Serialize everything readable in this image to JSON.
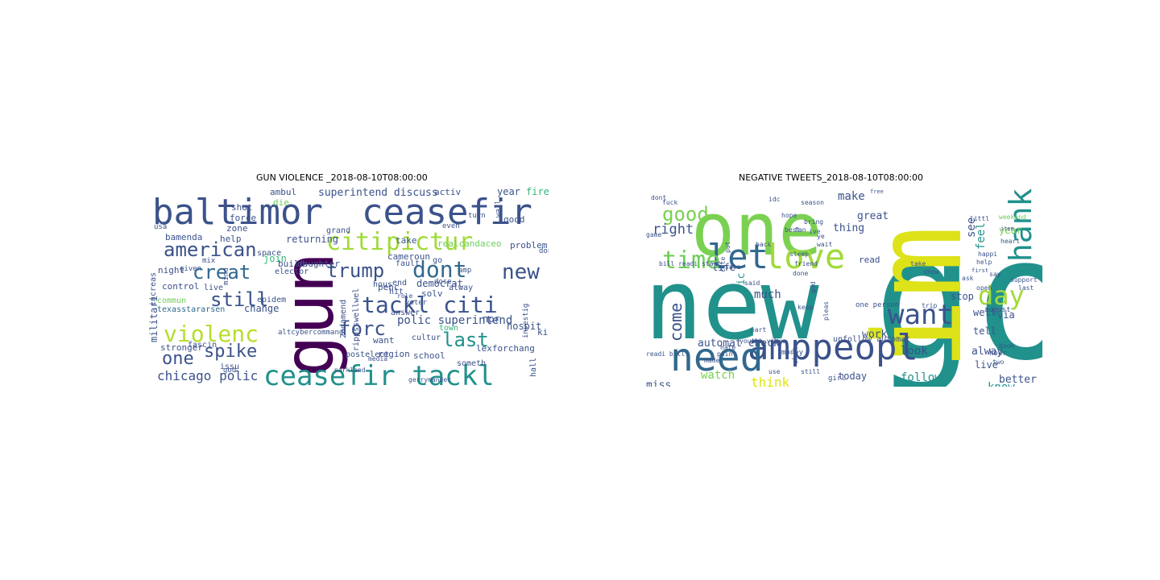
{
  "panels": [
    {
      "title": "GUN VIOLENCE _2018-08-10T08:00:00",
      "words": [
        {
          "t": "gun",
          "c": "#440154"
        },
        {
          "t": "baltimor",
          "c": "#3b528b"
        },
        {
          "t": "ceasefir",
          "c": "#3b528b"
        },
        {
          "t": "citi",
          "c": "#a0da39"
        },
        {
          "t": "pictur",
          "c": "#a0da39"
        },
        {
          "t": "american",
          "c": "#3b528b"
        },
        {
          "t": "creat",
          "c": "#31688e"
        },
        {
          "t": "trump",
          "c": "#3b528b"
        },
        {
          "t": "dont",
          "c": "#31688e"
        },
        {
          "t": "new",
          "c": "#3b528b"
        },
        {
          "t": "still",
          "c": "#3b528b"
        },
        {
          "t": "tackl citi",
          "c": "#3b528b"
        },
        {
          "t": "forc",
          "c": "#3b528b"
        },
        {
          "t": "violenc",
          "c": "#b5de2b"
        },
        {
          "t": "last",
          "c": "#21918c"
        },
        {
          "t": "one",
          "c": "#3b528b"
        },
        {
          "t": "spike",
          "c": "#3b528b"
        },
        {
          "t": "ceasefir tackl",
          "c": "#21918c"
        },
        {
          "t": "chicago polic",
          "c": "#3b528b"
        },
        {
          "t": "polic superintend",
          "c": "#3b528b"
        },
        {
          "t": "superintend discuss",
          "c": "#3b528b"
        },
        {
          "t": "shot",
          "c": "#3b528b"
        },
        {
          "t": "die",
          "c": "#6ece58"
        },
        {
          "t": "ambul",
          "c": "#3b528b"
        },
        {
          "t": "activ",
          "c": "#3b528b"
        },
        {
          "t": "year",
          "c": "#3b528b"
        },
        {
          "t": "fire",
          "c": "#35b779"
        },
        {
          "t": "bamenda",
          "c": "#3b528b"
        },
        {
          "t": "help",
          "c": "#3b528b"
        },
        {
          "t": "zone",
          "c": "#3b528b"
        },
        {
          "t": "force",
          "c": "#3b528b"
        },
        {
          "t": "returning",
          "c": "#3b528b"
        },
        {
          "t": "grand",
          "c": "#3b528b"
        },
        {
          "t": "good",
          "c": "#3b528b"
        },
        {
          "t": "night",
          "c": "#3b528b"
        },
        {
          "t": "control",
          "c": "#3b528b"
        },
        {
          "t": "live",
          "c": "#3b528b"
        },
        {
          "t": "commun",
          "c": "#6ece58"
        },
        {
          "t": "texasstararsen",
          "c": "#31688e"
        },
        {
          "t": "change",
          "c": "#3b528b"
        },
        {
          "t": "epidem",
          "c": "#3b528b"
        },
        {
          "t": "join",
          "c": "#35b779"
        },
        {
          "t": "build",
          "c": "#3b528b"
        },
        {
          "t": "daughter",
          "c": "#3b528b"
        },
        {
          "t": "space",
          "c": "#3b528b"
        },
        {
          "t": "cameroun",
          "c": "#3b528b"
        },
        {
          "t": "realcandaceo",
          "c": "#6ece58"
        },
        {
          "t": "problem",
          "c": "#3b528b"
        },
        {
          "t": "democrat",
          "c": "#3b528b"
        },
        {
          "t": "solv",
          "c": "#3b528b"
        },
        {
          "t": "penc",
          "c": "#3b528b"
        },
        {
          "t": "hit",
          "c": "#3b528b"
        },
        {
          "t": "hous",
          "c": "#3b528b"
        },
        {
          "t": "end",
          "c": "#3b528b"
        },
        {
          "t": "npr",
          "c": "#3b528b"
        },
        {
          "t": "hospit",
          "c": "#3b528b"
        },
        {
          "t": "lexforchang",
          "c": "#3b528b"
        },
        {
          "t": "want",
          "c": "#3b528b"
        },
        {
          "t": "region",
          "c": "#3b528b"
        },
        {
          "t": "school",
          "c": "#3b528b"
        },
        {
          "t": "postelect",
          "c": "#3b528b"
        },
        {
          "t": "issu",
          "c": "#3b528b"
        },
        {
          "t": "stronger",
          "c": "#3b528b"
        },
        {
          "t": "fascin",
          "c": "#3b528b"
        },
        {
          "t": "militari",
          "c": "#3b528b"
        },
        {
          "t": "rippsswellwel",
          "c": "#3b528b"
        },
        {
          "t": "2ndamend",
          "c": "#3b528b"
        },
        {
          "t": "town",
          "c": "#35b779"
        },
        {
          "t": "kid",
          "c": "#3b528b"
        },
        {
          "t": "cultur",
          "c": "#3b528b"
        },
        {
          "t": "someth",
          "c": "#3b528b"
        },
        {
          "t": "god",
          "c": "#3b528b"
        },
        {
          "t": "increas",
          "c": "#3b528b"
        },
        {
          "t": "given",
          "c": "#3b528b"
        },
        {
          "t": "mix",
          "c": "#3b528b"
        },
        {
          "t": "elector",
          "c": "#3b528b"
        },
        {
          "t": "take",
          "c": "#3b528b"
        },
        {
          "t": "fault",
          "c": "#3b528b"
        },
        {
          "t": "answer",
          "c": "#3b528b"
        },
        {
          "t": "alway",
          "c": "#3b528b"
        },
        {
          "t": "amp",
          "c": "#3b528b"
        },
        {
          "t": "hall",
          "c": "#3b528b"
        },
        {
          "t": "even",
          "c": "#3b528b"
        },
        {
          "t": "turn",
          "c": "#3b528b"
        },
        {
          "t": "wall",
          "c": "#3b528b"
        },
        {
          "t": "don",
          "c": "#3b528b"
        },
        {
          "t": "go",
          "c": "#3b528b"
        },
        {
          "t": "mind",
          "c": "#3b528b"
        },
        {
          "t": "investig",
          "c": "#3b528b"
        },
        {
          "t": "altcybercommand",
          "c": "#3b528b"
        },
        {
          "t": "voter",
          "c": "#3b528b"
        },
        {
          "t": "usa",
          "c": "#3b528b"
        },
        {
          "t": "role",
          "c": "#3b528b"
        },
        {
          "t": "dose",
          "c": "#3b528b"
        },
        {
          "t": "media",
          "c": "#3b528b"
        },
        {
          "t": "parkland",
          "c": "#3b528b"
        },
        {
          "t": "gerrymander",
          "c": "#3b528b"
        }
      ]
    },
    {
      "title": "NEGATIVE TWEETS_2018-08-10T08:00:00",
      "words": [
        {
          "t": "go",
          "c": "#21918c"
        },
        {
          "t": "new",
          "c": "#21918c"
        },
        {
          "t": "one",
          "c": "#7ad151"
        },
        {
          "t": "im",
          "c": "#dde318"
        },
        {
          "t": "amppeopl",
          "c": "#3b528b"
        },
        {
          "t": "need",
          "c": "#31688e"
        },
        {
          "t": "love",
          "c": "#a0da39"
        },
        {
          "t": "let",
          "c": "#31688e"
        },
        {
          "t": "thank",
          "c": "#21918c"
        },
        {
          "t": "time",
          "c": "#6ece58"
        },
        {
          "t": "day",
          "c": "#a0da39"
        },
        {
          "t": "want",
          "c": "#3b528b"
        },
        {
          "t": "good",
          "c": "#7ad151"
        },
        {
          "t": "right",
          "c": "#3b528b"
        },
        {
          "t": "come",
          "c": "#3b528b"
        },
        {
          "t": "make",
          "c": "#3b528b"
        },
        {
          "t": "great",
          "c": "#3b528b"
        },
        {
          "t": "thing",
          "c": "#3b528b"
        },
        {
          "t": "read",
          "c": "#3b528b"
        },
        {
          "t": "see",
          "c": "#3b528b"
        },
        {
          "t": "feel",
          "c": "#21918c"
        },
        {
          "t": "year",
          "c": "#7ad151"
        },
        {
          "t": "automat check",
          "c": "#3b528b"
        },
        {
          "t": "watch",
          "c": "#7ad151"
        },
        {
          "t": "think",
          "c": "#dde318"
        },
        {
          "t": "much",
          "c": "#3b528b"
        },
        {
          "t": "work",
          "c": "#3b528b"
        },
        {
          "t": "look",
          "c": "#3b528b"
        },
        {
          "t": "today",
          "c": "#3b528b"
        },
        {
          "t": "follow",
          "c": "#21918c"
        },
        {
          "t": "know",
          "c": "#21918c"
        },
        {
          "t": "better",
          "c": "#3b528b"
        },
        {
          "t": "miss",
          "c": "#3b528b"
        },
        {
          "t": "tell",
          "c": "#3b528b"
        },
        {
          "t": "stop",
          "c": "#3b528b"
        },
        {
          "t": "well",
          "c": "#3b528b"
        },
        {
          "t": "via",
          "c": "#3b528b"
        },
        {
          "t": "alway",
          "c": "#3b528b"
        },
        {
          "t": "live",
          "c": "#3b528b"
        },
        {
          "t": "life",
          "c": "#3b528b"
        },
        {
          "t": "pic",
          "c": "#21918c"
        },
        {
          "t": "unfollow automat",
          "c": "#3b528b"
        },
        {
          "t": "one person",
          "c": "#3b528b"
        },
        {
          "t": "youtub video",
          "c": "#3b528b"
        },
        {
          "t": "bill readi start",
          "c": "#3b528b"
        },
        {
          "t": "august",
          "c": "#3b528b"
        },
        {
          "t": "hour",
          "c": "#3b528b"
        },
        {
          "t": "book",
          "c": "#3b528b"
        },
        {
          "t": "first",
          "c": "#3b528b"
        },
        {
          "t": "fuck",
          "c": "#3b528b"
        },
        {
          "t": "dont",
          "c": "#3b528b"
        },
        {
          "t": "idc",
          "c": "#3b528b"
        },
        {
          "t": "free",
          "c": "#3b528b"
        },
        {
          "t": "weekend",
          "c": "#6ece58"
        },
        {
          "t": "littl",
          "c": "#3b528b"
        },
        {
          "t": "item",
          "c": "#3b528b"
        },
        {
          "t": "happi",
          "c": "#3b528b"
        },
        {
          "t": "heart",
          "c": "#3b528b"
        },
        {
          "t": "bring",
          "c": "#3b528b"
        },
        {
          "t": "fan",
          "c": "#3b528b"
        },
        {
          "t": "friend",
          "c": "#3b528b"
        },
        {
          "t": "take",
          "c": "#3b528b"
        },
        {
          "t": "show",
          "c": "#3b528b"
        },
        {
          "t": "back",
          "c": "#3b528b"
        },
        {
          "t": "sleep",
          "c": "#3b528b"
        },
        {
          "t": "season",
          "c": "#3b528b"
        },
        {
          "t": "support",
          "c": "#3b528b"
        },
        {
          "t": "last",
          "c": "#3b528b"
        },
        {
          "t": "say",
          "c": "#3b528b"
        },
        {
          "t": "two",
          "c": "#3b528b"
        },
        {
          "t": "ask",
          "c": "#3b528b"
        },
        {
          "t": "help",
          "c": "#3b528b"
        },
        {
          "t": "open",
          "c": "#3b528b"
        },
        {
          "t": "sale",
          "c": "#3b528b"
        },
        {
          "t": "part",
          "c": "#3b528b"
        },
        {
          "t": "trip",
          "c": "#3b528b"
        },
        {
          "t": "cute",
          "c": "#3b528b"
        },
        {
          "t": "keep",
          "c": "#3b528b"
        },
        {
          "t": "girl",
          "c": "#3b528b"
        },
        {
          "t": "shit",
          "c": "#3b528b"
        },
        {
          "t": "still",
          "c": "#3b528b"
        },
        {
          "t": "hide",
          "c": "#3b528b"
        },
        {
          "t": "readi bill",
          "c": "#3b528b"
        },
        {
          "t": "money",
          "c": "#3b528b"
        },
        {
          "t": "pleas",
          "c": "#3b528b"
        },
        {
          "t": "point",
          "c": "#3b528b"
        },
        {
          "t": "hate",
          "c": "#3b528b"
        },
        {
          "t": "made",
          "c": "#3b528b"
        },
        {
          "t": "use",
          "c": "#3b528b"
        },
        {
          "t": "god",
          "c": "#3b528b"
        },
        {
          "t": "hope",
          "c": "#3b528b"
        },
        {
          "t": "best",
          "c": "#3b528b"
        },
        {
          "t": "done",
          "c": "#3b528b"
        },
        {
          "t": "put",
          "c": "#3b528b"
        },
        {
          "t": "ive",
          "c": "#3b528b"
        },
        {
          "t": "ye",
          "c": "#3b528b"
        },
        {
          "t": "game",
          "c": "#3b528b"
        },
        {
          "t": "wait",
          "c": "#3b528b"
        },
        {
          "t": "said",
          "c": "#3b528b"
        }
      ]
    }
  ]
}
